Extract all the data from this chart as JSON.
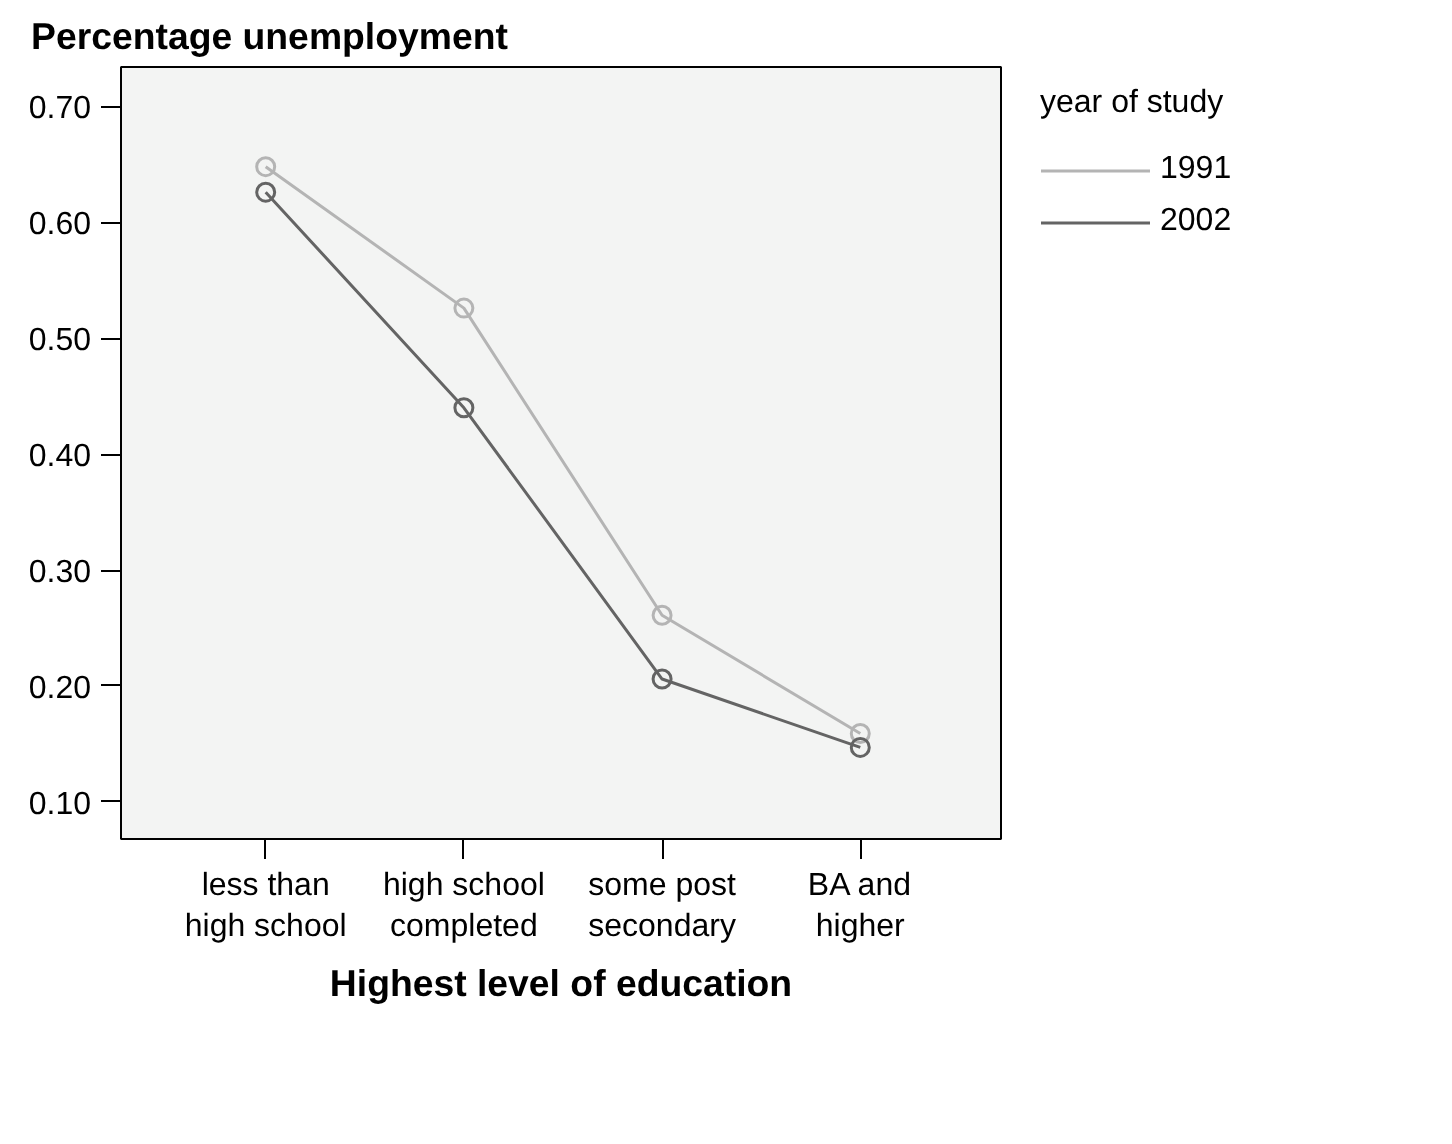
{
  "chart_data": {
    "type": "line",
    "ylabel": "Percentage unemployment",
    "xlabel": "Highest level of education",
    "legend_title": "year of study",
    "categories": [
      "less than high school",
      "high school completed",
      "some post secondary",
      "BA and higher"
    ],
    "series": [
      {
        "name": "1991",
        "color": "#b4b4b4",
        "values": [
          0.648,
          0.526,
          0.261,
          0.159
        ]
      },
      {
        "name": "2002",
        "color": "#646464",
        "values": [
          0.626,
          0.44,
          0.206,
          0.147
        ]
      }
    ],
    "ylim": [
      0.068,
      0.734
    ],
    "yticks": [
      {
        "value": 0.1,
        "label": "0.10"
      },
      {
        "value": 0.2,
        "label": "0.20"
      },
      {
        "value": 0.3,
        "label": "0.30"
      },
      {
        "value": 0.4,
        "label": "0.40"
      },
      {
        "value": 0.5,
        "label": "0.50"
      },
      {
        "value": 0.6,
        "label": "0.60"
      },
      {
        "value": 0.7,
        "label": "0.70"
      }
    ],
    "marker": "circle",
    "line_style": "solid",
    "grid": false,
    "legend": "right"
  }
}
